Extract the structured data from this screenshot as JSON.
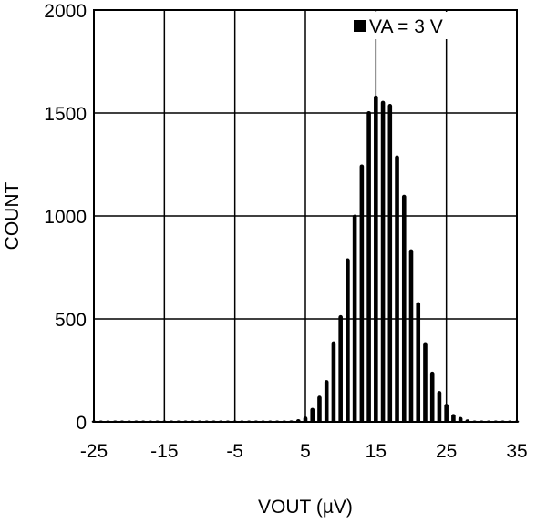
{
  "chart_data": {
    "type": "bar",
    "title": "",
    "xlabel": "VOUT (µV)",
    "ylabel": "COUNT",
    "xlim": [
      -25,
      35
    ],
    "ylim": [
      0,
      2000
    ],
    "xticks": [
      -25,
      -15,
      -5,
      5,
      15,
      25,
      35
    ],
    "yticks": [
      0,
      500,
      1000,
      1500,
      2000
    ],
    "grid": true,
    "legend": {
      "position": "top-right",
      "entries": [
        "VA = 3 V"
      ]
    },
    "bar_color": "#000000",
    "series": [
      {
        "name": "VA = 3 V",
        "x": [
          -25,
          -24,
          -23,
          -22,
          -21,
          -20,
          -19,
          -18,
          -17,
          -16,
          -15,
          -14,
          -13,
          -12,
          -11,
          -10,
          -9,
          -8,
          -7,
          -6,
          -5,
          -4,
          -3,
          -2,
          -1,
          0,
          1,
          2,
          3,
          4,
          5,
          6,
          7,
          8,
          9,
          10,
          11,
          12,
          13,
          14,
          15,
          16,
          17,
          18,
          19,
          20,
          21,
          22,
          23,
          24,
          25,
          26,
          27,
          28,
          29,
          30,
          31,
          32,
          33,
          34,
          35
        ],
        "values": [
          0,
          0,
          0,
          0,
          0,
          0,
          0,
          0,
          0,
          0,
          0,
          0,
          0,
          0,
          0,
          0,
          0,
          0,
          0,
          0,
          0,
          0,
          0,
          0,
          0,
          0,
          1,
          4,
          7,
          13,
          26,
          68,
          127,
          203,
          391,
          518,
          794,
          1006,
          1250,
          1509,
          1585,
          1559,
          1544,
          1294,
          1103,
          838,
          582,
          387,
          244,
          150,
          88,
          38,
          24,
          12,
          3,
          1,
          0,
          0,
          0,
          0,
          0
        ]
      }
    ]
  }
}
